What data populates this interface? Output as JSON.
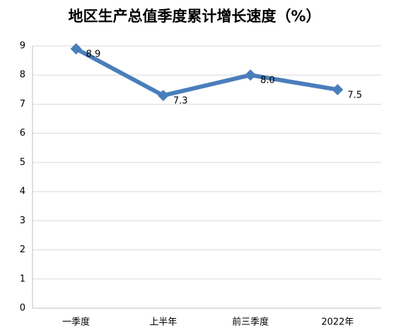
{
  "chart_data": {
    "type": "line",
    "title": "地区生产总值季度累计增长速度（%）",
    "categories": [
      "一季度",
      "上半年",
      "前三季度",
      "2022年"
    ],
    "values": [
      8.9,
      7.3,
      8.0,
      7.5
    ],
    "value_labels": [
      "8.9",
      "7.3",
      "8.0",
      "7.5"
    ],
    "color": "#4a7ebb",
    "ylim": [
      0,
      9
    ],
    "yticks": [
      0,
      1,
      2,
      3,
      4,
      5,
      6,
      7,
      8,
      9
    ],
    "grid": true
  }
}
